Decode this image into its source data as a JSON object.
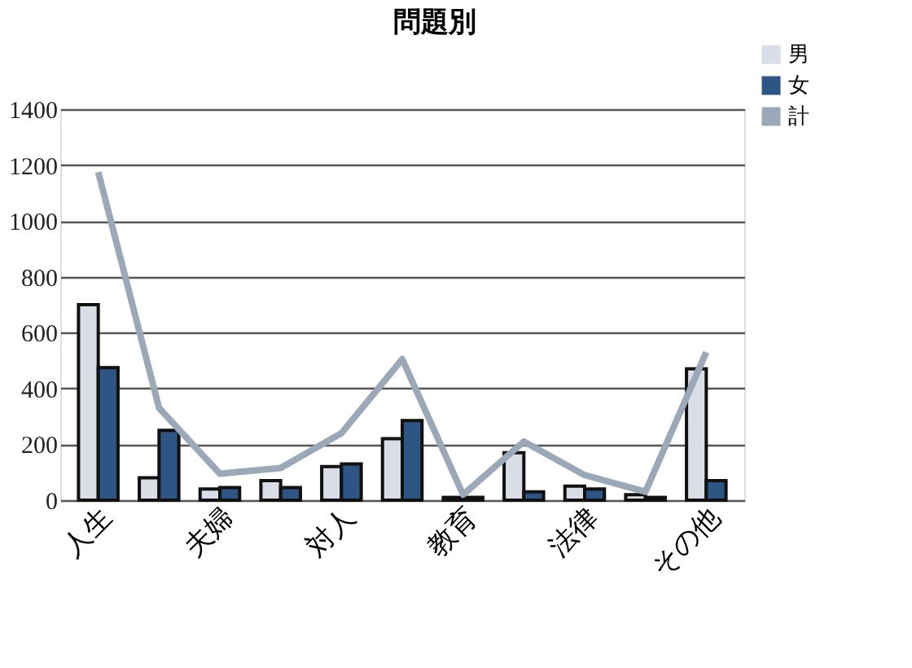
{
  "chart_data": {
    "type": "bar",
    "title": "問題別",
    "categories": [
      "人生",
      null,
      "夫婦",
      null,
      "対人",
      null,
      "教育",
      null,
      "法律",
      null,
      "その他"
    ],
    "series": [
      {
        "name": "男",
        "color": "#d9dde6",
        "values": [
          700,
          80,
          40,
          70,
          120,
          220,
          10,
          170,
          50,
          20,
          470
        ]
      },
      {
        "name": "女",
        "color": "#2e5583",
        "values": [
          475,
          250,
          45,
          45,
          130,
          285,
          10,
          30,
          40,
          10,
          70
        ]
      },
      {
        "name": "計",
        "type": "line",
        "color": "#9aa8b8",
        "values": [
          1175,
          330,
          95,
          115,
          240,
          505,
          20,
          210,
          90,
          30,
          530
        ]
      }
    ],
    "ylim": [
      0,
      1400
    ],
    "yticks": [
      0,
      200,
      400,
      600,
      800,
      1000,
      1200,
      1400
    ],
    "grid": "y",
    "legend": "top right"
  }
}
